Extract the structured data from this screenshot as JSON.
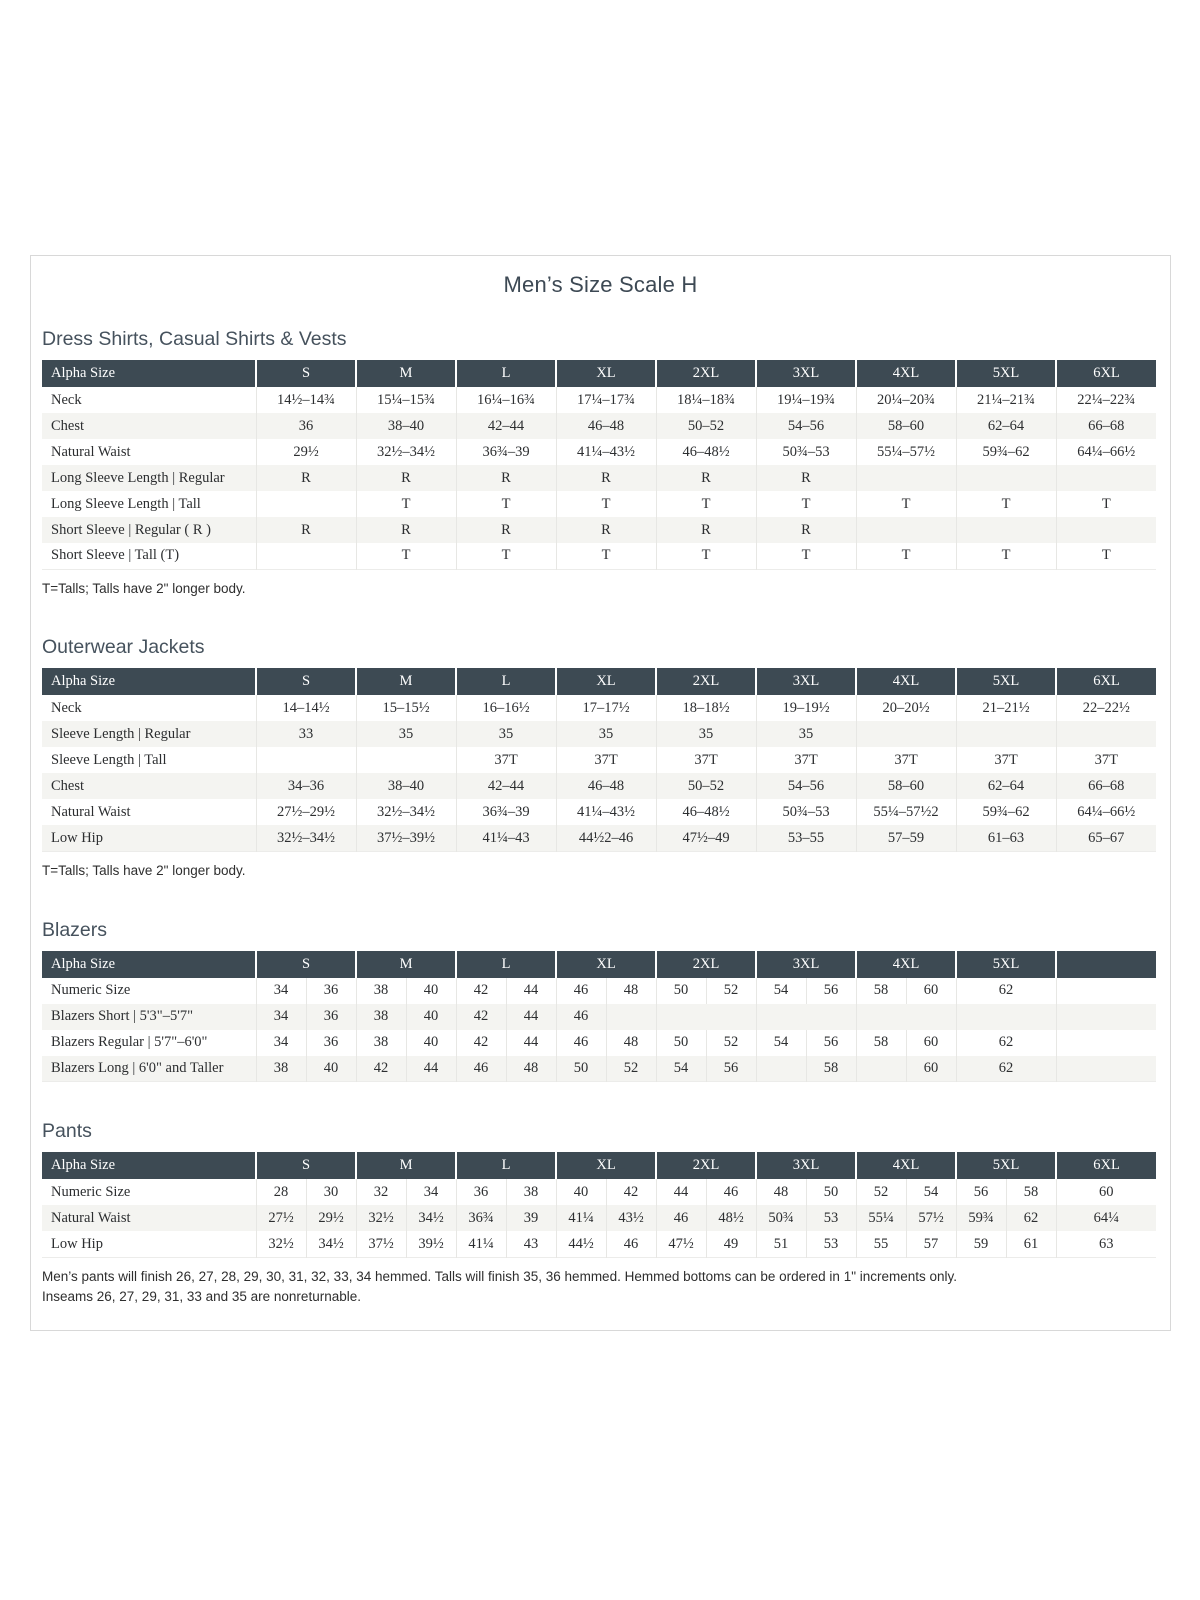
{
  "page": {
    "title": "Men’s Size Scale H"
  },
  "tables": [
    {
      "section": "Dress Shirts, Casual Shirts & Vests",
      "paired": false,
      "header": [
        "Alpha Size",
        "S",
        "M",
        "L",
        "XL",
        "2XL",
        "3XL",
        "4XL",
        "5XL",
        "6XL"
      ],
      "rows": [
        {
          "label": "Neck",
          "cells": [
            "14½–14¾",
            "15¼–15¾",
            "16¼–16¾",
            "17¼–17¾",
            "18¼–18¾",
            "19¼–19¾",
            "20¼–20¾",
            "21¼–21¾",
            "22¼–22¾"
          ]
        },
        {
          "label": "Chest",
          "cells": [
            "36",
            "38–40",
            "42–44",
            "46–48",
            "50–52",
            "54–56",
            "58–60",
            "62–64",
            "66–68"
          ]
        },
        {
          "label": "Natural Waist",
          "cells": [
            "29½",
            "32½–34½",
            "36¾–39",
            "41¼–43½",
            "46–48½",
            "50¾–53",
            "55¼–57½",
            "59¾–62",
            "64¼–66½"
          ]
        },
        {
          "label": "Long Sleeve Length | Regular",
          "cells": [
            "R",
            "R",
            "R",
            "R",
            "R",
            "R",
            "",
            "",
            ""
          ]
        },
        {
          "label": "Long Sleeve Length | Tall",
          "cells": [
            "",
            "T",
            "T",
            "T",
            "T",
            "T",
            "T",
            "T",
            "T"
          ]
        },
        {
          "label": "Short Sleeve | Regular ( R )",
          "cells": [
            "R",
            "R",
            "R",
            "R",
            "R",
            "R",
            "",
            "",
            ""
          ]
        },
        {
          "label": "Short Sleeve | Tall (T)",
          "cells": [
            "",
            "T",
            "T",
            "T",
            "T",
            "T",
            "T",
            "T",
            "T"
          ]
        }
      ],
      "footnote": [
        "T=Talls; Talls have 2\" longer body."
      ]
    },
    {
      "section": "Outerwear Jackets",
      "paired": false,
      "header": [
        "Alpha Size",
        "S",
        "M",
        "L",
        "XL",
        "2XL",
        "3XL",
        "4XL",
        "5XL",
        "6XL"
      ],
      "rows": [
        {
          "label": "Neck",
          "cells": [
            "14–14½",
            "15–15½",
            "16–16½",
            "17–17½",
            "18–18½",
            "19–19½",
            "20–20½",
            "21–21½",
            "22–22½"
          ]
        },
        {
          "label": "Sleeve Length | Regular",
          "cells": [
            "33",
            "35",
            "35",
            "35",
            "35",
            "35",
            "",
            "",
            ""
          ]
        },
        {
          "label": "Sleeve Length | Tall",
          "cells": [
            "",
            "",
            "37T",
            "37T",
            "37T",
            "37T",
            "37T",
            "37T",
            "37T"
          ]
        },
        {
          "label": "Chest",
          "cells": [
            "34–36",
            "38–40",
            "42–44",
            "46–48",
            "50–52",
            "54–56",
            "58–60",
            "62–64",
            "66–68"
          ]
        },
        {
          "label": "Natural Waist",
          "cells": [
            "27½–29½",
            "32½–34½",
            "36¾–39",
            "41¼–43½",
            "46–48½",
            "50¾–53",
            "55¼–57½2",
            "59¾–62",
            "64¼–66½"
          ]
        },
        {
          "label": "Low Hip",
          "cells": [
            "32½–34½",
            "37½–39½",
            "41¼–43",
            "44½2–46",
            "47½–49",
            "53–55",
            "57–59",
            "61–63",
            "65–67"
          ]
        }
      ],
      "footnote": [
        "T=Talls; Talls have 2\" longer body."
      ]
    },
    {
      "section": "Blazers",
      "paired": true,
      "header": [
        "Alpha Size",
        "S",
        "M",
        "L",
        "XL",
        "2XL",
        "3XL",
        "4XL",
        "5XL",
        ""
      ],
      "rows": [
        {
          "label": "Numeric Size",
          "cells": [
            [
              "34",
              "36"
            ],
            [
              "38",
              "40"
            ],
            [
              "42",
              "44"
            ],
            [
              "46",
              "48"
            ],
            [
              "50",
              "52"
            ],
            [
              "54",
              "56"
            ],
            [
              "58",
              "60"
            ],
            [
              "62"
            ],
            []
          ]
        },
        {
          "label": "Blazers Short | 5'3\"–5'7\"",
          "cells": [
            [
              "34",
              "36"
            ],
            [
              "38",
              "40"
            ],
            [
              "42",
              "44"
            ],
            [
              "46",
              ""
            ],
            [],
            [],
            [],
            [],
            []
          ]
        },
        {
          "label": "Blazers Regular | 5'7\"–6'0\"",
          "cells": [
            [
              "34",
              "36"
            ],
            [
              "38",
              "40"
            ],
            [
              "42",
              "44"
            ],
            [
              "46",
              "48"
            ],
            [
              "50",
              "52"
            ],
            [
              "54",
              "56"
            ],
            [
              "58",
              "60"
            ],
            [
              "62"
            ],
            []
          ]
        },
        {
          "label": "Blazers Long | 6'0\" and Taller",
          "cells": [
            [
              "38",
              "40"
            ],
            [
              "42",
              "44"
            ],
            [
              "46",
              "48"
            ],
            [
              "50",
              "52"
            ],
            [
              "54",
              "56"
            ],
            [
              "",
              "58"
            ],
            [
              "",
              "60"
            ],
            [
              "62"
            ],
            []
          ]
        }
      ],
      "footnote": []
    },
    {
      "section": "Pants",
      "paired": true,
      "header": [
        "Alpha Size",
        "S",
        "M",
        "L",
        "XL",
        "2XL",
        "3XL",
        "4XL",
        "5XL",
        "6XL"
      ],
      "rows": [
        {
          "label": "Numeric Size",
          "cells": [
            [
              "28",
              "30"
            ],
            [
              "32",
              "34"
            ],
            [
              "36",
              "38"
            ],
            [
              "40",
              "42"
            ],
            [
              "44",
              "46"
            ],
            [
              "48",
              "50"
            ],
            [
              "52",
              "54"
            ],
            [
              "56",
              "58"
            ],
            [
              "60"
            ]
          ]
        },
        {
          "label": "Natural Waist",
          "cells": [
            [
              "27½",
              "29½"
            ],
            [
              "32½",
              "34½"
            ],
            [
              "36¾",
              "39"
            ],
            [
              "41¼",
              "43½"
            ],
            [
              "46",
              "48½"
            ],
            [
              "50¾",
              "53"
            ],
            [
              "55¼",
              "57½"
            ],
            [
              "59¾",
              "62"
            ],
            [
              "64¼"
            ]
          ]
        },
        {
          "label": "Low Hip",
          "cells": [
            [
              "32½",
              "34½"
            ],
            [
              "37½",
              "39½"
            ],
            [
              "41¼",
              "43"
            ],
            [
              "44½",
              "46"
            ],
            [
              "47½",
              "49"
            ],
            [
              "51",
              "53"
            ],
            [
              "55",
              "57"
            ],
            [
              "59",
              "61"
            ],
            [
              "63"
            ]
          ]
        }
      ],
      "footnote": [
        "Men’s pants will finish 26, 27, 28, 29, 30, 31, 32, 33, 34 hemmed. Talls will finish 35, 36 hemmed. Hemmed bottoms can be ordered in 1\" increments only.",
        "Inseams 26, 27, 29, 31, 33 and 35 are nonreturnable."
      ]
    }
  ]
}
